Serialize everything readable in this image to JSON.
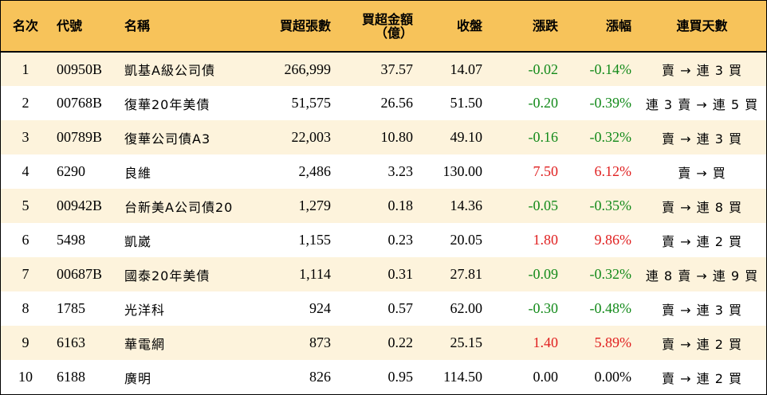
{
  "headers": {
    "rank": "名次",
    "code": "代號",
    "name": "名稱",
    "buy_lots": "買超張數",
    "buy_amount_line1": "買超金額",
    "buy_amount_line2": "（億）",
    "close": "收盤",
    "change": "漲跌",
    "change_pct": "漲幅",
    "consecutive_days": "連買天數"
  },
  "colors": {
    "header_bg": "#f7c35a",
    "odd_row_bg": "#fdf3dc",
    "up": "#e02020",
    "down": "#138a1a"
  },
  "rows": [
    {
      "rank": "1",
      "code": "00950B",
      "name": "凱基A級公司債",
      "buy_lots": "266,999",
      "buy_amount": "37.57",
      "close": "14.07",
      "change": "-0.02",
      "change_pct": "-0.14%",
      "trend": "down",
      "days": "賣 → 連 3 買"
    },
    {
      "rank": "2",
      "code": "00768B",
      "name": "復華20年美債",
      "buy_lots": "51,575",
      "buy_amount": "26.56",
      "close": "51.50",
      "change": "-0.20",
      "change_pct": "-0.39%",
      "trend": "down",
      "days": "連 3 賣 → 連 5 買"
    },
    {
      "rank": "3",
      "code": "00789B",
      "name": "復華公司債A3",
      "buy_lots": "22,003",
      "buy_amount": "10.80",
      "close": "49.10",
      "change": "-0.16",
      "change_pct": "-0.32%",
      "trend": "down",
      "days": "賣 → 連 3 買"
    },
    {
      "rank": "4",
      "code": "6290",
      "name": "良維",
      "buy_lots": "2,486",
      "buy_amount": "3.23",
      "close": "130.00",
      "change": "7.50",
      "change_pct": "6.12%",
      "trend": "up",
      "days": "賣 → 買"
    },
    {
      "rank": "5",
      "code": "00942B",
      "name": "台新美A公司債20",
      "buy_lots": "1,279",
      "buy_amount": "0.18",
      "close": "14.36",
      "change": "-0.05",
      "change_pct": "-0.35%",
      "trend": "down",
      "days": "賣 → 連 8 買"
    },
    {
      "rank": "6",
      "code": "5498",
      "name": "凱崴",
      "buy_lots": "1,155",
      "buy_amount": "0.23",
      "close": "20.05",
      "change": "1.80",
      "change_pct": "9.86%",
      "trend": "up",
      "days": "賣 → 連 2 買"
    },
    {
      "rank": "7",
      "code": "00687B",
      "name": "國泰20年美債",
      "buy_lots": "1,114",
      "buy_amount": "0.31",
      "close": "27.81",
      "change": "-0.09",
      "change_pct": "-0.32%",
      "trend": "down",
      "days": "連 8 賣 → 連 9 買"
    },
    {
      "rank": "8",
      "code": "1785",
      "name": "光洋科",
      "buy_lots": "924",
      "buy_amount": "0.57",
      "close": "62.00",
      "change": "-0.30",
      "change_pct": "-0.48%",
      "trend": "down",
      "days": "賣 → 連 3 買"
    },
    {
      "rank": "9",
      "code": "6163",
      "name": "華電網",
      "buy_lots": "873",
      "buy_amount": "0.22",
      "close": "25.15",
      "change": "1.40",
      "change_pct": "5.89%",
      "trend": "up",
      "days": "賣 → 連 2 買"
    },
    {
      "rank": "10",
      "code": "6188",
      "name": "廣明",
      "buy_lots": "826",
      "buy_amount": "0.95",
      "close": "114.50",
      "change": "0.00",
      "change_pct": "0.00%",
      "trend": "flat",
      "days": "賣 → 連 2 買"
    }
  ]
}
